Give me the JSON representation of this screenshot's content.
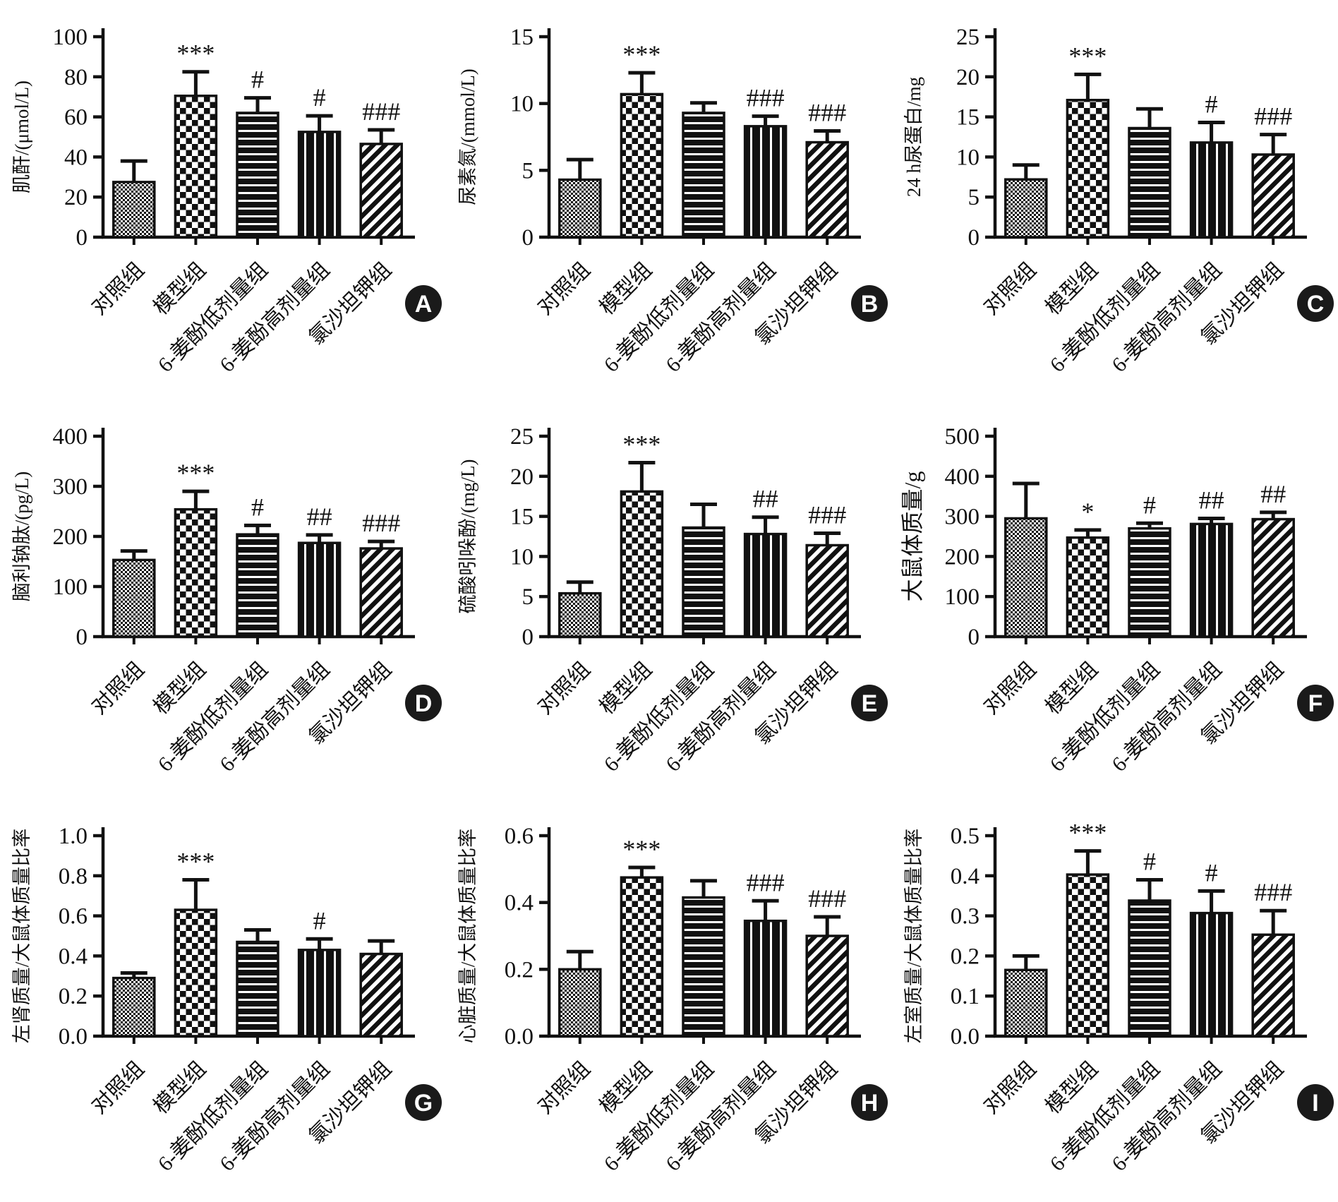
{
  "styles": {
    "bar_color": "#111111",
    "axis_color": "#111111",
    "background": "#ffffff",
    "badge_fill": "#1a1a1a",
    "badge_text_color": "#ffffff",
    "bar_patterns": [
      "fine-checkerboard",
      "coarse-checkerboard",
      "horizontal-stripes",
      "vertical-stripes",
      "diagonal-stripes"
    ]
  },
  "chart_data": [
    {
      "type": "bar",
      "panel": "A",
      "ylabel": "肌酐/(μmol/L)",
      "xlabel": "",
      "ylim": [
        0,
        100
      ],
      "yticks": [
        "0",
        "20",
        "40",
        "60",
        "80",
        "100"
      ],
      "categories": [
        "对照组",
        "模型组",
        "6-姜酚低剂量组",
        "6-姜酚高剂量组",
        "氯沙坦钾组"
      ],
      "values": [
        27.5,
        70.5,
        62,
        52.5,
        46.5
      ],
      "errors": [
        10.5,
        12,
        7.5,
        8,
        7
      ],
      "sig": [
        "",
        "***",
        "#",
        "#",
        "###"
      ],
      "grid": "off",
      "legend": "none"
    },
    {
      "type": "bar",
      "panel": "B",
      "ylabel": "尿素氮/(mmol/L)",
      "xlabel": "",
      "ylim": [
        0,
        15
      ],
      "yticks": [
        "0",
        "5",
        "10",
        "15"
      ],
      "categories": [
        "对照组",
        "模型组",
        "6-姜酚低剂量组",
        "6-姜酚高剂量组",
        "氯沙坦钾组"
      ],
      "values": [
        4.3,
        10.7,
        9.3,
        8.3,
        7.1
      ],
      "errors": [
        1.5,
        1.6,
        0.75,
        0.75,
        0.85
      ],
      "sig": [
        "",
        "***",
        "",
        "###",
        "###"
      ],
      "grid": "off",
      "legend": "none"
    },
    {
      "type": "bar",
      "panel": "C",
      "ylabel": "24 h尿蛋白/mg",
      "xlabel": "",
      "ylim": [
        0,
        25
      ],
      "yticks": [
        "0",
        "5",
        "10",
        "15",
        "20",
        "25"
      ],
      "categories": [
        "对照组",
        "模型组",
        "6-姜酚低剂量组",
        "6-姜酚高剂量组",
        "氯沙坦钾组"
      ],
      "values": [
        7.2,
        17.1,
        13.6,
        11.8,
        10.3
      ],
      "errors": [
        1.8,
        3.2,
        2.4,
        2.5,
        2.5
      ],
      "sig": [
        "",
        "***",
        "",
        "#",
        "###"
      ],
      "grid": "off",
      "legend": "none"
    },
    {
      "type": "bar",
      "panel": "D",
      "ylabel": "脑利钠肽/(pg/L)",
      "xlabel": "",
      "ylim": [
        0,
        400
      ],
      "yticks": [
        "0",
        "100",
        "200",
        "300",
        "400"
      ],
      "categories": [
        "对照组",
        "模型组",
        "6-姜酚低剂量组",
        "6-姜酚高剂量组",
        "氯沙坦钾组"
      ],
      "values": [
        153,
        254,
        204,
        187,
        176
      ],
      "errors": [
        18,
        36,
        18,
        16,
        14
      ],
      "sig": [
        "",
        "***",
        "#",
        "##",
        "###"
      ],
      "grid": "off",
      "legend": "none"
    },
    {
      "type": "bar",
      "panel": "E",
      "ylabel": "硫酸吲哚酚/(mg/L)",
      "xlabel": "",
      "ylim": [
        0,
        25
      ],
      "yticks": [
        "0",
        "5",
        "10",
        "15",
        "20",
        "25"
      ],
      "categories": [
        "对照组",
        "模型组",
        "6-姜酚低剂量组",
        "6-姜酚高剂量组",
        "氯沙坦钾组"
      ],
      "values": [
        5.4,
        18.1,
        13.6,
        12.8,
        11.4
      ],
      "errors": [
        1.4,
        3.6,
        2.9,
        2.1,
        1.5
      ],
      "sig": [
        "",
        "***",
        "",
        "##",
        "###"
      ],
      "grid": "off",
      "legend": "none"
    },
    {
      "type": "bar",
      "panel": "F",
      "ylabel": "大鼠体质量/g",
      "xlabel": "",
      "ylim": [
        0,
        500
      ],
      "yticks": [
        "0",
        "100",
        "200",
        "300",
        "400",
        "500"
      ],
      "categories": [
        "对照组",
        "模型组",
        "6-姜酚低剂量组",
        "6-姜酚高剂量组",
        "氯沙坦钾组"
      ],
      "values": [
        295,
        247,
        270,
        281,
        293
      ],
      "errors": [
        87,
        19,
        13,
        14,
        17
      ],
      "sig": [
        "",
        "*",
        "#",
        "##",
        "##"
      ],
      "grid": "off",
      "legend": "none"
    },
    {
      "type": "bar",
      "panel": "G",
      "ylabel": "左肾质量/大鼠体质量比率",
      "xlabel": "",
      "ylim": [
        0,
        1.0
      ],
      "yticks": [
        "0.0",
        "0.2",
        "0.4",
        "0.6",
        "0.8",
        "1.0"
      ],
      "categories": [
        "对照组",
        "模型组",
        "6-姜酚低剂量组",
        "6-姜酚高剂量组",
        "氯沙坦钾组"
      ],
      "values": [
        0.29,
        0.63,
        0.47,
        0.43,
        0.41
      ],
      "errors": [
        0.025,
        0.15,
        0.06,
        0.055,
        0.065
      ],
      "sig": [
        "",
        "***",
        "",
        "#",
        ""
      ],
      "grid": "off",
      "legend": "none"
    },
    {
      "type": "bar",
      "panel": "H",
      "ylabel": "心脏质量/大鼠体质量比率",
      "xlabel": "",
      "ylim": [
        0,
        0.6
      ],
      "yticks": [
        "0.0",
        "0.2",
        "0.4",
        "0.6"
      ],
      "categories": [
        "对照组",
        "模型组",
        "6-姜酚低剂量组",
        "6-姜酚高剂量组",
        "氯沙坦钾组"
      ],
      "values": [
        0.2,
        0.475,
        0.415,
        0.345,
        0.3
      ],
      "errors": [
        0.053,
        0.03,
        0.05,
        0.06,
        0.057
      ],
      "sig": [
        "",
        "***",
        "",
        "###",
        "###"
      ],
      "grid": "off",
      "legend": "none"
    },
    {
      "type": "bar",
      "panel": "I",
      "ylabel": "左室质量/大鼠体质量比率",
      "xlabel": "",
      "ylim": [
        0,
        0.5
      ],
      "yticks": [
        "0.0",
        "0.1",
        "0.2",
        "0.3",
        "0.4",
        "0.5"
      ],
      "categories": [
        "对照组",
        "模型组",
        "6-姜酚低剂量组",
        "6-姜酚高剂量组",
        "氯沙坦钾组"
      ],
      "values": [
        0.165,
        0.403,
        0.338,
        0.307,
        0.253
      ],
      "errors": [
        0.035,
        0.059,
        0.052,
        0.055,
        0.06
      ],
      "sig": [
        "",
        "***",
        "#",
        "#",
        "###"
      ],
      "grid": "off",
      "legend": "none"
    }
  ]
}
